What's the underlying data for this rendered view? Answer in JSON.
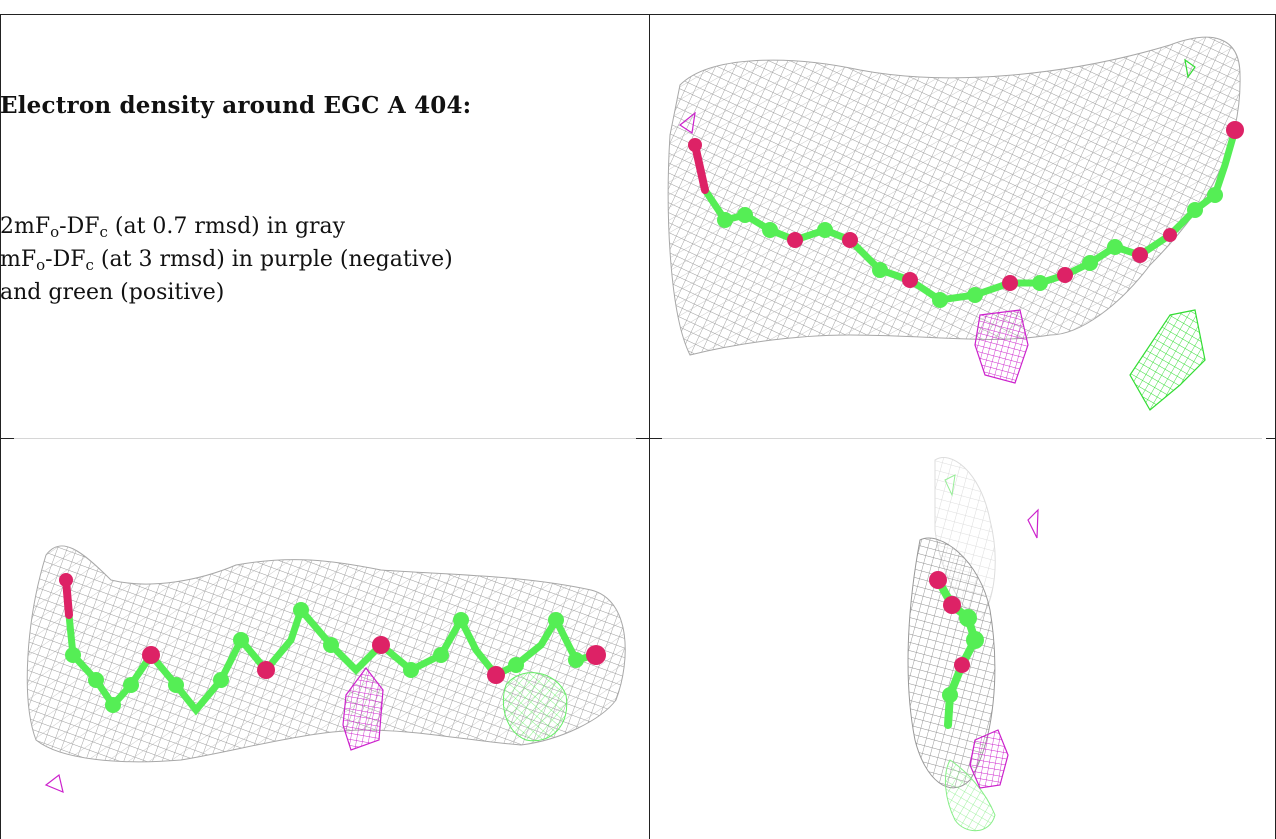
{
  "caption": {
    "title": "Electron density around EGC A 404:",
    "line1": {
      "p1": "2mF",
      "s1": "o",
      "p2": "-DF",
      "s2": "c",
      "p3": " (at 0.7 rmsd) in gray"
    },
    "line2": {
      "p1": "mF",
      "s1": "o",
      "p2": "-DF",
      "s2": "c",
      "p3": " (at 3 rmsd) in purple (negative)"
    },
    "line3": "and green (positive)"
  },
  "colors": {
    "mesh_gray": "#9a9a9a",
    "negative_purple": "#cc22cc",
    "positive_green": "#33dd33",
    "atom_green": "#55ee55",
    "atom_red": "#dd2266"
  },
  "panels": [
    {
      "id": "view-top-right"
    },
    {
      "id": "view-bottom-left"
    },
    {
      "id": "view-bottom-right"
    }
  ]
}
